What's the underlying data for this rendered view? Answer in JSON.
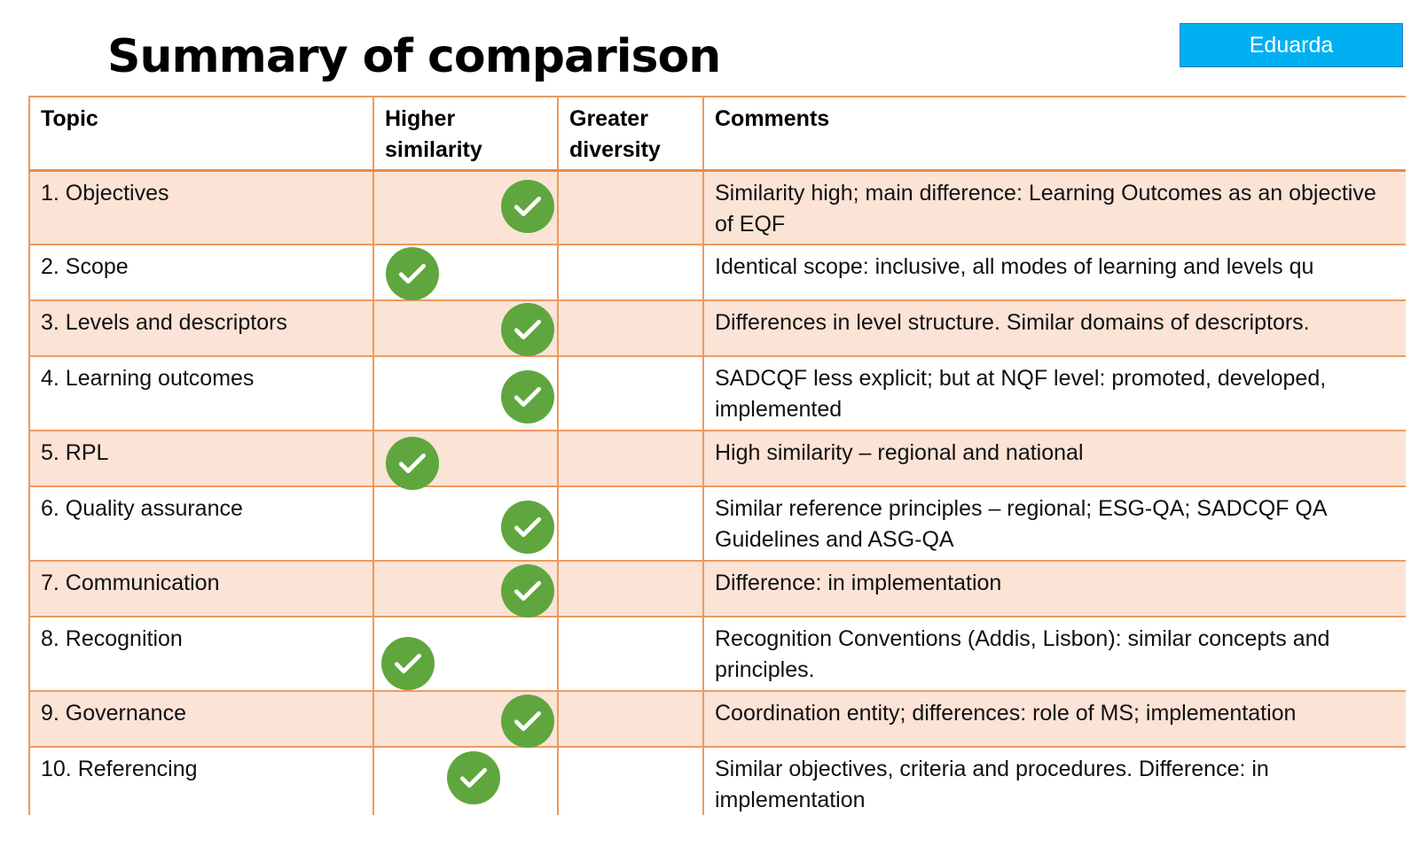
{
  "title": "Summary of comparison",
  "presenter_label": "Eduarda",
  "colors": {
    "table_border": "#ed9a5e",
    "row_band": "#fbe3d6",
    "check": "#5fa63e",
    "presenter_bg": "#00b0f0"
  },
  "table": {
    "headers": [
      "Topic",
      "Higher similarity",
      "Greater diversity",
      "Comments"
    ],
    "rows": [
      {
        "topic": "1. Objectives",
        "higher_similarity": true,
        "greater_diversity": false,
        "comment": "Similarity high; main difference: Learning Outcomes as an objective of EQF"
      },
      {
        "topic": "2. Scope",
        "higher_similarity": true,
        "greater_diversity": false,
        "comment": "Identical scope: inclusive, all modes of learning and levels qu"
      },
      {
        "topic": "3. Levels and descriptors",
        "higher_similarity": true,
        "greater_diversity": false,
        "comment": "Differences in level structure. Similar domains of descriptors."
      },
      {
        "topic": "4. Learning outcomes",
        "higher_similarity": true,
        "greater_diversity": false,
        "comment": "SADCQF less explicit; but at NQF level: promoted, developed, implemented"
      },
      {
        "topic": "5. RPL",
        "higher_similarity": true,
        "greater_diversity": false,
        "comment": "High similarity – regional and national"
      },
      {
        "topic": "6. Quality assurance",
        "higher_similarity": true,
        "greater_diversity": false,
        "comment": "Similar reference principles – regional; ESG-QA; SADCQF QA Guidelines and ASG-QA"
      },
      {
        "topic": "7. Communication",
        "higher_similarity": true,
        "greater_diversity": false,
        "comment": "Difference: in implementation"
      },
      {
        "topic": "8. Recognition",
        "higher_similarity": true,
        "greater_diversity": false,
        "comment": "Recognition Conventions (Addis, Lisbon): similar concepts and principles."
      },
      {
        "topic": "9. Governance",
        "higher_similarity": true,
        "greater_diversity": false,
        "comment": "Coordination entity; differences: role of MS; implementation"
      },
      {
        "topic": "10. Referencing",
        "higher_similarity": true,
        "greater_diversity": false,
        "comment": "Similar objectives, criteria and procedures. Difference: in implementation"
      }
    ]
  }
}
